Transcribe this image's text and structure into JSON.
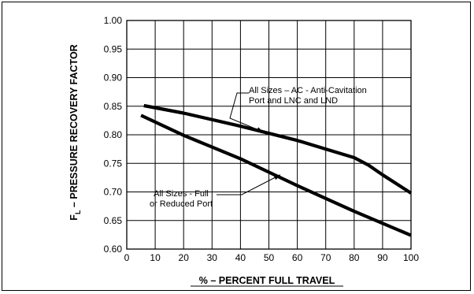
{
  "chart_data": {
    "type": "line",
    "title": "",
    "xlabel": "% – PERCENT FULL TRAVEL",
    "ylabel_prefix": "F",
    "ylabel_subscript": "L",
    "ylabel_rest": " – PRESSURE RECOVERY FACTOR",
    "xlim": [
      0,
      100
    ],
    "ylim": [
      0.6,
      1.0
    ],
    "x_ticks": [
      0,
      10,
      20,
      30,
      40,
      50,
      60,
      70,
      80,
      90,
      100
    ],
    "y_ticks": [
      0.6,
      0.65,
      0.7,
      0.75,
      0.8,
      0.85,
      0.9,
      0.95,
      1.0
    ],
    "y_tick_labels": [
      "0.60",
      "0.65",
      "0.70",
      "0.75",
      "0.80",
      "0.85",
      "0.90",
      "0.95",
      "1.00"
    ],
    "grid": true,
    "series": [
      {
        "x": [
          6,
          20,
          40,
          60,
          70,
          80,
          85,
          90,
          100
        ],
        "y": [
          0.851,
          0.838,
          0.815,
          0.79,
          0.775,
          0.76,
          0.747,
          0.73,
          0.698
        ]
      },
      {
        "x": [
          5,
          20,
          40,
          60,
          80,
          100
        ],
        "y": [
          0.834,
          0.799,
          0.758,
          0.711,
          0.666,
          0.624
        ]
      }
    ],
    "annotations": [
      {
        "lines": [
          "All Sizes – AC - Anti-Cavitation",
          "Port and LNC and LND"
        ],
        "series_index": 0,
        "arrow_to": [
          48,
          0.805
        ]
      },
      {
        "lines": [
          "All Sizes - Full",
          "or Reduced Port"
        ],
        "series_index": 1,
        "arrow_to": [
          54,
          0.73
        ]
      }
    ]
  }
}
